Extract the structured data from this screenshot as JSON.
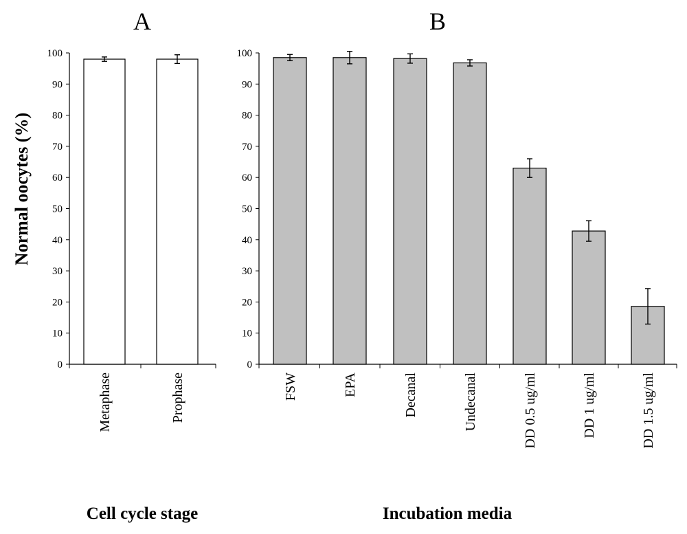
{
  "colors": {
    "bar_a": "#ffffff",
    "bar_b": "#c0c0c0",
    "stroke": "#000000"
  },
  "ylabel": "Normal oocytes (%)",
  "chart_data": [
    {
      "type": "bar",
      "panel": "A",
      "xlabel": "Cell cycle stage",
      "ylabel": "Normal oocytes (%)",
      "ylim": [
        0,
        100
      ],
      "yticks": [
        0,
        10,
        20,
        30,
        40,
        50,
        60,
        70,
        80,
        90,
        100
      ],
      "categories": [
        "Metaphase",
        "Prophase"
      ],
      "values": [
        98,
        98
      ],
      "errors": [
        0.7,
        1.4
      ]
    },
    {
      "type": "bar",
      "panel": "B",
      "xlabel": "Incubation media",
      "ylabel": "Normal oocytes (%)",
      "ylim": [
        0,
        100
      ],
      "yticks": [
        0,
        10,
        20,
        30,
        40,
        50,
        60,
        70,
        80,
        90,
        100
      ],
      "categories": [
        "FSW",
        "EPA",
        "Decanal",
        "Undecanal",
        "DD 0.5 ug/ml",
        "DD  1 ug/ml",
        "DD 1.5 ug/ml"
      ],
      "values": [
        98.5,
        98.5,
        98.2,
        96.8,
        63,
        42.8,
        18.6
      ],
      "errors": [
        1.0,
        2.0,
        1.5,
        1.0,
        3.0,
        3.3,
        5.7
      ]
    }
  ]
}
